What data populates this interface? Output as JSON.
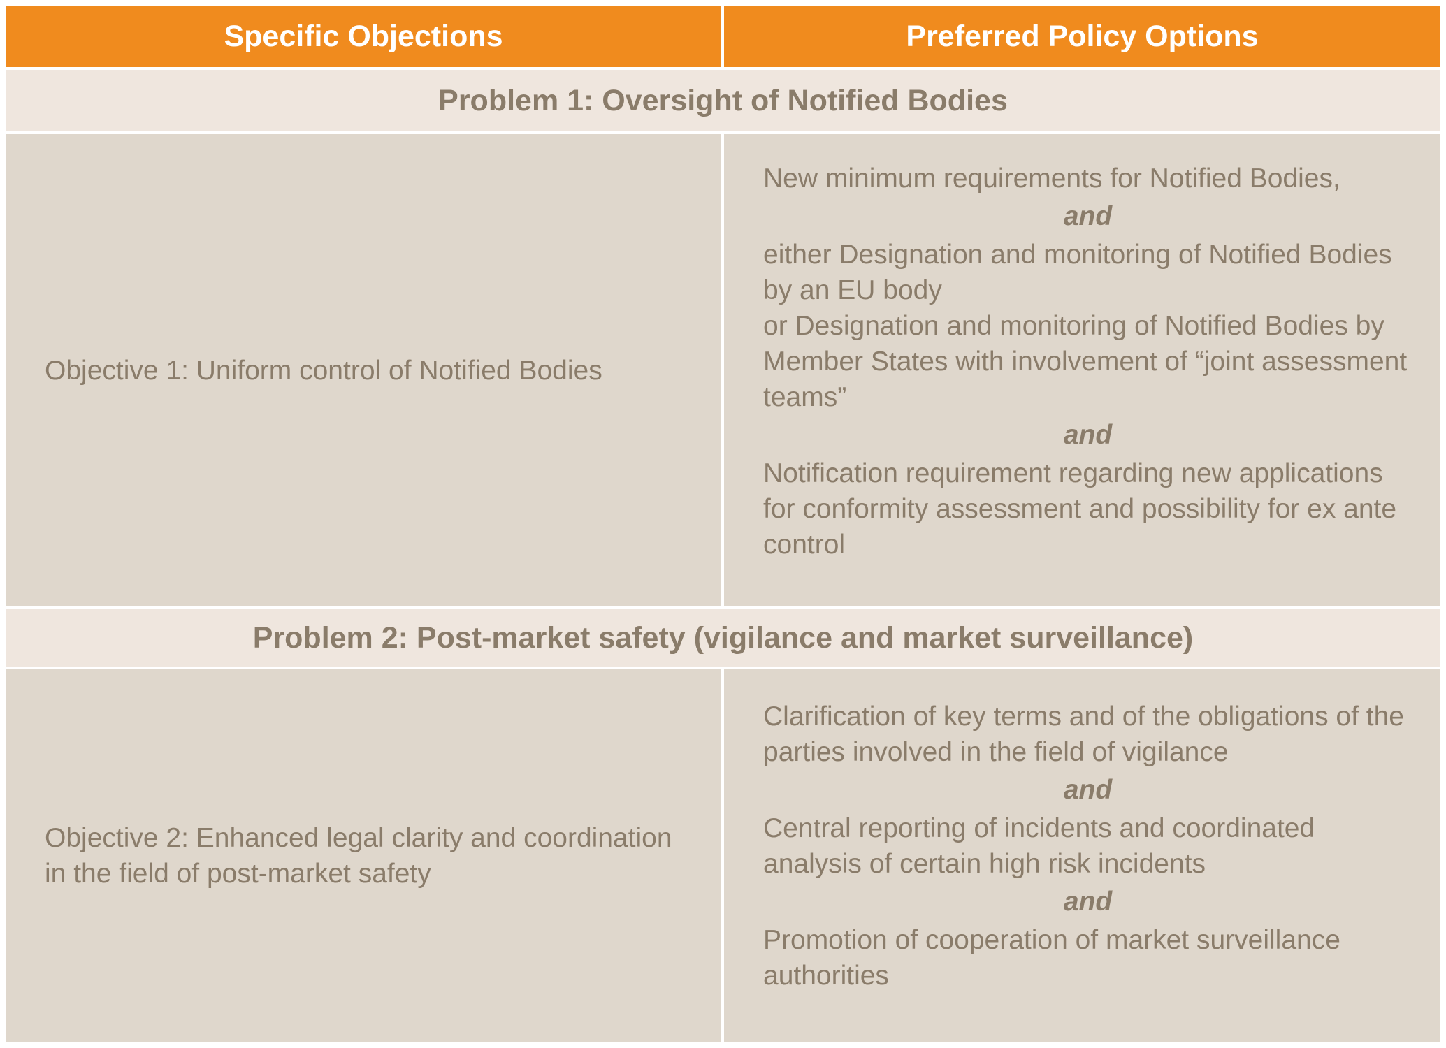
{
  "header": {
    "col1": "Specific Objections",
    "col2": "Preferred Policy Options"
  },
  "problems": [
    {
      "title": "Problem 1: Oversight of Notified Bodies",
      "objective": "Objective 1: Uniform control of Notified Bodies",
      "options": [
        "New minimum requirements for Notified Bodies,",
        "and",
        "either Designation and monitoring of Notified Bodies by an EU body",
        "or Designation and monitoring of Notified Bodies by Member States with involvement of “joint assessment teams”",
        "and",
        "Notification requirement regarding new applications for conformity assessment and possibility for ex ante control"
      ]
    },
    {
      "title": "Problem 2: Post-market safety (vigilance and market surveillance)",
      "objective": "Objective 2: Enhanced legal clarity and coordination in the field of post-market safety",
      "options": [
        "Clarification of key terms and of the obligations of the parties involved in the field of vigilance",
        "and",
        "Central reporting of incidents and coordinated analysis of certain high risk incidents",
        "and",
        "Promotion of cooperation of market surveillance authorities"
      ]
    }
  ],
  "colors": {
    "header_bg": "#f08b1e",
    "problem_bg": "#efe6de",
    "cell_bg": "#dfd7cc",
    "text": "#8a7c6a"
  }
}
